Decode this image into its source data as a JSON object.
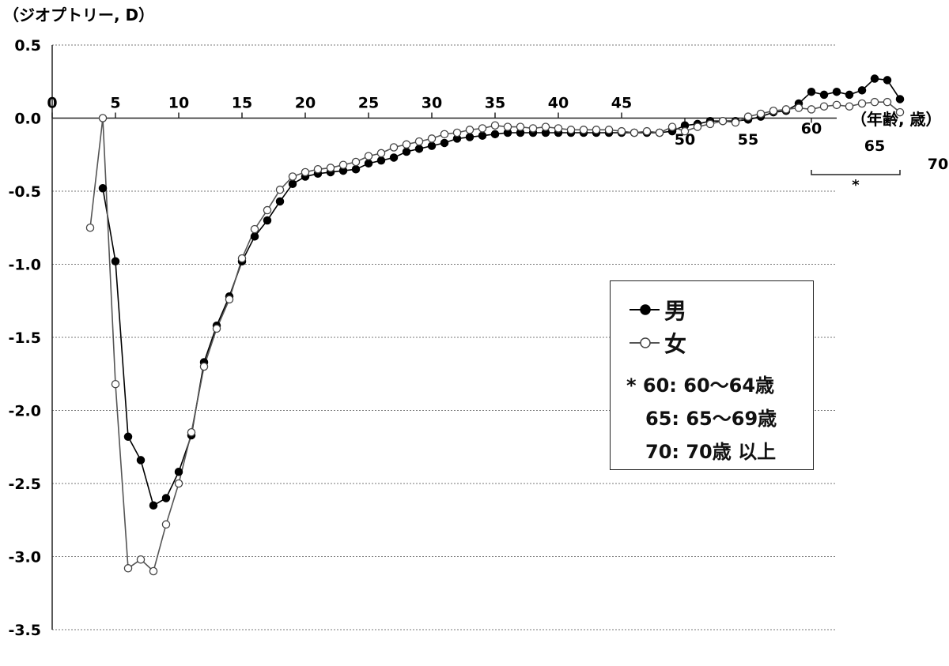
{
  "chart_data": {
    "type": "line",
    "ylabel": "（ジオプトリー, D）",
    "xlabel": "（年齢, 歳）",
    "ylim": [
      -3.5,
      0.5
    ],
    "yticks": [
      "0.5",
      "0.0",
      "-0.5",
      "-1.0",
      "-1.5",
      "-2.0",
      "-2.5",
      "-3.0",
      "-3.5"
    ],
    "xticks_top": [
      "0",
      "5",
      "10",
      "15",
      "20",
      "25",
      "30",
      "35",
      "40",
      "45"
    ],
    "xticks_bottom": [
      "50",
      "55",
      "60",
      "65",
      "70"
    ],
    "grid": true,
    "legend_position": "right",
    "series": [
      {
        "name": "男",
        "marker": "filled",
        "color": "#000000",
        "points": [
          [
            4,
            -0.48
          ],
          [
            5,
            -0.98
          ],
          [
            6,
            -2.18
          ],
          [
            7,
            -2.34
          ],
          [
            8,
            -2.65
          ],
          [
            9,
            -2.6
          ],
          [
            10,
            -2.42
          ],
          [
            11,
            -2.17
          ],
          [
            12,
            -1.67
          ],
          [
            13,
            -1.42
          ],
          [
            14,
            -1.22
          ],
          [
            15,
            -0.98
          ],
          [
            16,
            -0.81
          ],
          [
            17,
            -0.7
          ],
          [
            18,
            -0.57
          ],
          [
            19,
            -0.45
          ],
          [
            20,
            -0.4
          ],
          [
            21,
            -0.38
          ],
          [
            22,
            -0.37
          ],
          [
            23,
            -0.36
          ],
          [
            24,
            -0.35
          ],
          [
            25,
            -0.31
          ],
          [
            26,
            -0.29
          ],
          [
            27,
            -0.27
          ],
          [
            28,
            -0.23
          ],
          [
            29,
            -0.21
          ],
          [
            30,
            -0.19
          ],
          [
            31,
            -0.17
          ],
          [
            32,
            -0.14
          ],
          [
            33,
            -0.13
          ],
          [
            34,
            -0.12
          ],
          [
            35,
            -0.11
          ],
          [
            36,
            -0.1
          ],
          [
            37,
            -0.1
          ],
          [
            38,
            -0.1
          ],
          [
            39,
            -0.1
          ],
          [
            40,
            -0.1
          ],
          [
            41,
            -0.1
          ],
          [
            42,
            -0.1
          ],
          [
            43,
            -0.1
          ],
          [
            44,
            -0.1
          ],
          [
            45,
            -0.1
          ],
          [
            46,
            -0.1
          ],
          [
            47,
            -0.1
          ],
          [
            48,
            -0.1
          ],
          [
            49,
            -0.09
          ],
          [
            50,
            -0.05
          ],
          [
            51,
            -0.04
          ],
          [
            52,
            -0.02
          ],
          [
            53,
            -0.02
          ],
          [
            54,
            -0.02
          ],
          [
            55,
            -0.01
          ],
          [
            56,
            0.01
          ],
          [
            57,
            0.04
          ],
          [
            58,
            0.05
          ],
          [
            59,
            0.1
          ],
          [
            60,
            0.18
          ],
          [
            61,
            0.16
          ],
          [
            62,
            0.18
          ],
          [
            63,
            0.16
          ],
          [
            64,
            0.19
          ],
          [
            65,
            0.27
          ],
          [
            66,
            0.26
          ],
          [
            67,
            0.13
          ]
        ]
      },
      {
        "name": "女",
        "marker": "open",
        "color": "#555555",
        "points": [
          [
            3,
            -0.75
          ],
          [
            4,
            0.0
          ],
          [
            5,
            -1.82
          ],
          [
            6,
            -3.08
          ],
          [
            7,
            -3.02
          ],
          [
            8,
            -3.1
          ],
          [
            9,
            -2.78
          ],
          [
            10,
            -2.5
          ],
          [
            11,
            -2.15
          ],
          [
            12,
            -1.7
          ],
          [
            13,
            -1.44
          ],
          [
            14,
            -1.24
          ],
          [
            15,
            -0.96
          ],
          [
            16,
            -0.76
          ],
          [
            17,
            -0.63
          ],
          [
            18,
            -0.49
          ],
          [
            19,
            -0.4
          ],
          [
            20,
            -0.37
          ],
          [
            21,
            -0.35
          ],
          [
            22,
            -0.34
          ],
          [
            23,
            -0.32
          ],
          [
            24,
            -0.3
          ],
          [
            25,
            -0.26
          ],
          [
            26,
            -0.24
          ],
          [
            27,
            -0.2
          ],
          [
            28,
            -0.18
          ],
          [
            29,
            -0.16
          ],
          [
            30,
            -0.14
          ],
          [
            31,
            -0.11
          ],
          [
            32,
            -0.1
          ],
          [
            33,
            -0.08
          ],
          [
            34,
            -0.07
          ],
          [
            35,
            -0.05
          ],
          [
            36,
            -0.06
          ],
          [
            37,
            -0.06
          ],
          [
            38,
            -0.07
          ],
          [
            39,
            -0.06
          ],
          [
            40,
            -0.07
          ],
          [
            41,
            -0.08
          ],
          [
            42,
            -0.08
          ],
          [
            43,
            -0.08
          ],
          [
            44,
            -0.08
          ],
          [
            45,
            -0.09
          ],
          [
            46,
            -0.1
          ],
          [
            47,
            -0.09
          ],
          [
            48,
            -0.1
          ],
          [
            49,
            -0.06
          ],
          [
            50,
            -0.09
          ],
          [
            51,
            -0.06
          ],
          [
            52,
            -0.04
          ],
          [
            53,
            -0.02
          ],
          [
            54,
            -0.03
          ],
          [
            55,
            0.01
          ],
          [
            56,
            0.03
          ],
          [
            57,
            0.05
          ],
          [
            58,
            0.06
          ],
          [
            59,
            0.07
          ],
          [
            60,
            0.06
          ],
          [
            61,
            0.08
          ],
          [
            62,
            0.09
          ],
          [
            63,
            0.08
          ],
          [
            64,
            0.1
          ],
          [
            65,
            0.11
          ],
          [
            66,
            0.11
          ],
          [
            67,
            0.04
          ]
        ]
      }
    ],
    "bracket_label": "*"
  },
  "legend": {
    "male_label": "男",
    "female_label": "女",
    "note_line1": "* 60: 60～64歳",
    "note_line2": "65: 65～69歳",
    "note_line3": "70: 70歳 以上"
  }
}
